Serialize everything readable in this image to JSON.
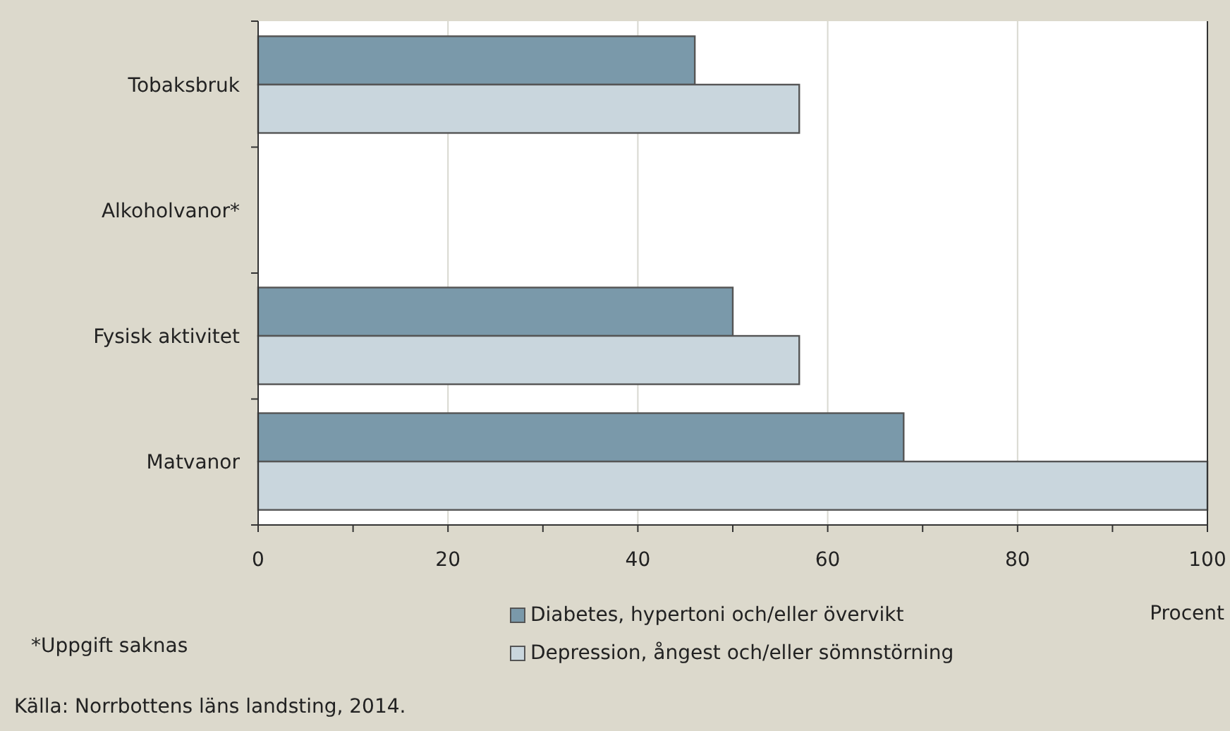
{
  "chart_data": {
    "type": "bar",
    "orientation": "horizontal",
    "xlabel": "Procent",
    "categories": [
      "Tobaksbruk",
      "Alkoholvanor*",
      "Fysisk aktivitet",
      "Matvanor"
    ],
    "series": [
      {
        "name": "Diabetes, hypertoni och/eller övervikt",
        "color": "#7a99aa",
        "values": [
          46,
          null,
          50,
          68
        ]
      },
      {
        "name": "Depression, ångest och/eller sömnstörning",
        "color": "#c9d6dd",
        "values": [
          57,
          null,
          57,
          100
        ]
      }
    ],
    "xlim": [
      0,
      100
    ],
    "xticks": [
      0,
      {
        "value": 10,
        "label": null
      },
      20,
      {
        "value": 30,
        "label": null
      },
      40,
      {
        "value": 50,
        "label": null
      },
      60,
      {
        "value": 70,
        "label": null
      },
      80,
      {
        "value": 90,
        "label": null
      },
      100
    ],
    "grid": "x",
    "legend": "bottom",
    "annotations": [
      "*Uppgift saknas",
      "Källa: Norrbottens läns landsting, 2014."
    ]
  }
}
